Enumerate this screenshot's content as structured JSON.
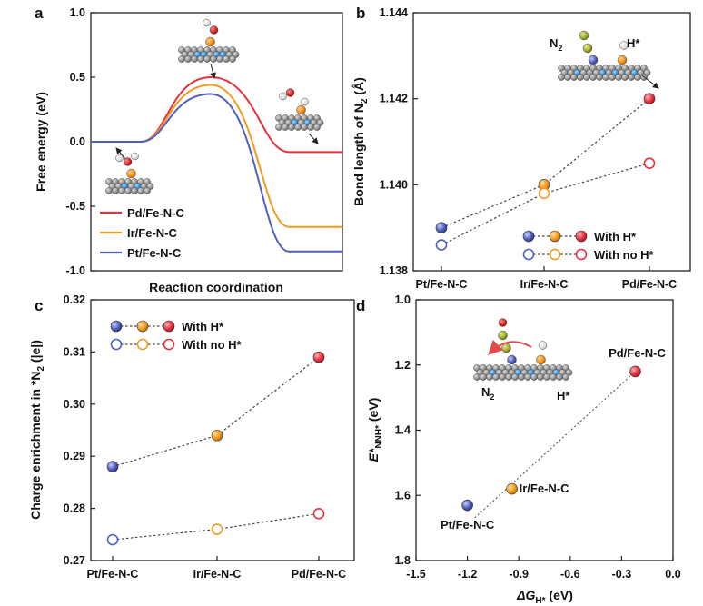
{
  "colors": {
    "pd": "#e8313d",
    "ir": "#f39b1e",
    "pt": "#4f5fbf",
    "line": "#333333"
  },
  "chart_data": [
    {
      "panel": "a",
      "type": "line",
      "ylabel": "Free energy (eV)",
      "xlabel": "Reaction coordination",
      "ylim": [
        -1.0,
        1.0
      ],
      "yticks": [
        "1.0",
        "0.5",
        "0.0",
        "-0.5",
        "-1.0"
      ],
      "series": [
        {
          "name": "Pd/Fe-N-C",
          "color": "#e8313d",
          "initial": 0.0,
          "barrier": 0.5,
          "final": -0.08
        },
        {
          "name": "Ir/Fe-N-C",
          "color": "#f39b1e",
          "initial": 0.0,
          "barrier": 0.44,
          "final": -0.66
        },
        {
          "name": "Pt/Fe-N-C",
          "color": "#4f5fbf",
          "initial": 0.0,
          "barrier": 0.37,
          "final": -0.85
        }
      ]
    },
    {
      "panel": "b",
      "type": "scatter",
      "ylabel": "Bond length of N",
      "ylabel_sub": "2",
      "ylabel_unit": " (Å)",
      "categories": [
        "Pt/Fe-N-C",
        "Ir/Fe-N-C",
        "Pd/Fe-N-C"
      ],
      "ylim": [
        1.138,
        1.144
      ],
      "yticks": [
        "1.144",
        "1.142",
        "1.140",
        "1.138"
      ],
      "series": [
        {
          "name": "With H*",
          "filled": true,
          "values": [
            1.139,
            1.14,
            1.142
          ]
        },
        {
          "name": "With no H*",
          "filled": false,
          "values": [
            1.1386,
            1.1398,
            1.1405
          ]
        }
      ],
      "mol_labels": [
        "N",
        "2",
        "H*"
      ]
    },
    {
      "panel": "c",
      "type": "scatter",
      "ylabel": "Charge enrichment in *N",
      "ylabel_sub": "2",
      "ylabel_unit": " (|e|)",
      "categories": [
        "Pt/Fe-N-C",
        "Ir/Fe-N-C",
        "Pd/Fe-N-C"
      ],
      "ylim": [
        0.27,
        0.32
      ],
      "yticks": [
        "0.32",
        "0.31",
        "0.30",
        "0.29",
        "0.28",
        "0.27"
      ],
      "series": [
        {
          "name": "With H*",
          "filled": true,
          "values": [
            0.288,
            0.294,
            0.309
          ]
        },
        {
          "name": "With no H*",
          "filled": false,
          "values": [
            0.274,
            0.276,
            0.279
          ]
        }
      ]
    },
    {
      "panel": "d",
      "type": "scatter",
      "ylabel": "E*",
      "ylabel_sub": "NNH*",
      "ylabel_unit": " (eV)",
      "xlabel": "ΔG",
      "xlabel_sub": "H*",
      "xlabel_unit": " (eV)",
      "xlim": [
        -1.5,
        0.0
      ],
      "ylim": [
        1.0,
        1.8
      ],
      "xticks": [
        "-1.5",
        "-1.2",
        "-0.9",
        "-0.6",
        "-0.3",
        "0.0"
      ],
      "yticks": [
        "1.0",
        "1.2",
        "1.4",
        "1.6",
        "1.8"
      ],
      "points": [
        {
          "label": "Pt/Fe-N-C",
          "x": -1.2,
          "y": 1.63,
          "color": "#4f5fbf"
        },
        {
          "label": "Ir/Fe-N-C",
          "x": -0.94,
          "y": 1.58,
          "color": "#f39b1e"
        },
        {
          "label": "Pd/Fe-N-C",
          "x": -0.22,
          "y": 1.22,
          "color": "#e8313d"
        }
      ],
      "mol_labels": [
        "N",
        "2",
        "H*"
      ]
    }
  ]
}
